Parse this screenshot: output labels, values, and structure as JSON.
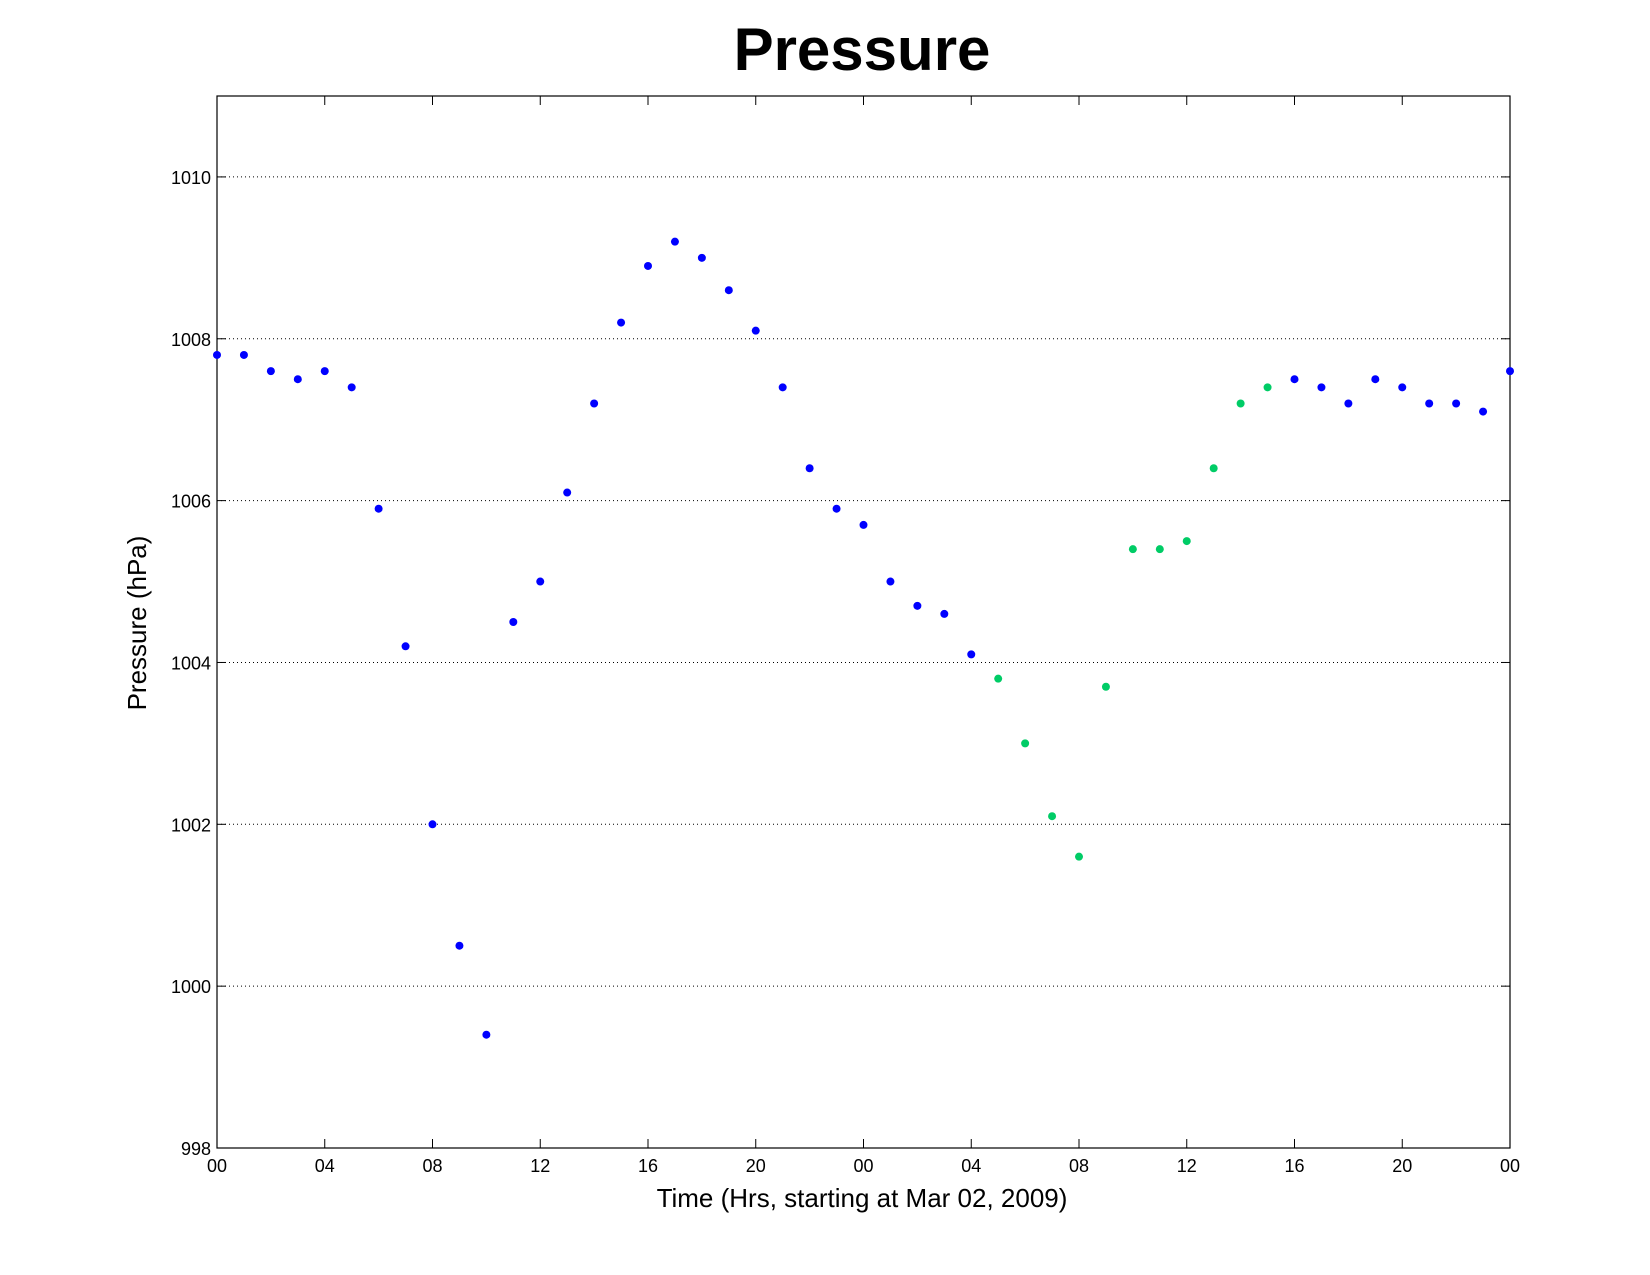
{
  "chart_data": {
    "type": "scatter",
    "title": "Pressure",
    "xlabel": "Time (Hrs, starting at Mar 02, 2009)",
    "ylabel": "Pressure (hPa)",
    "xlim": [
      0,
      48
    ],
    "ylim": [
      998,
      1011
    ],
    "x_ticks": [
      {
        "value": 0,
        "label": "00"
      },
      {
        "value": 4,
        "label": "04"
      },
      {
        "value": 8,
        "label": "08"
      },
      {
        "value": 12,
        "label": "12"
      },
      {
        "value": 16,
        "label": "16"
      },
      {
        "value": 20,
        "label": "20"
      },
      {
        "value": 24,
        "label": "00"
      },
      {
        "value": 28,
        "label": "04"
      },
      {
        "value": 32,
        "label": "08"
      },
      {
        "value": 36,
        "label": "12"
      },
      {
        "value": 40,
        "label": "16"
      },
      {
        "value": 44,
        "label": "20"
      },
      {
        "value": 48,
        "label": "00"
      }
    ],
    "y_ticks": [
      {
        "value": 998,
        "label": "998"
      },
      {
        "value": 1000,
        "label": "1000"
      },
      {
        "value": 1002,
        "label": "1002"
      },
      {
        "value": 1004,
        "label": "1004"
      },
      {
        "value": 1006,
        "label": "1006"
      },
      {
        "value": 1008,
        "label": "1008"
      },
      {
        "value": 1010,
        "label": "1010"
      }
    ],
    "grid": "horizontal-dotted",
    "series": [
      {
        "color": "#0000ff",
        "points": [
          [
            0,
            1007.8
          ],
          [
            1,
            1007.8
          ],
          [
            2,
            1007.6
          ],
          [
            3,
            1007.5
          ],
          [
            4,
            1007.6
          ],
          [
            5,
            1007.4
          ],
          [
            6,
            1005.9
          ],
          [
            7,
            1004.2
          ],
          [
            8,
            1002.0
          ],
          [
            9,
            1000.5
          ],
          [
            10,
            999.4
          ],
          [
            11,
            1004.5
          ],
          [
            12,
            1005.0
          ],
          [
            13,
            1006.1
          ],
          [
            14,
            1007.2
          ],
          [
            15,
            1008.2
          ],
          [
            16,
            1008.9
          ],
          [
            17,
            1009.2
          ],
          [
            18,
            1009.0
          ],
          [
            19,
            1008.6
          ],
          [
            20,
            1008.1
          ],
          [
            21,
            1007.4
          ],
          [
            22,
            1006.4
          ],
          [
            23,
            1005.9
          ],
          [
            24,
            1005.7
          ],
          [
            25,
            1005.0
          ],
          [
            26,
            1004.7
          ],
          [
            27,
            1004.6
          ],
          [
            28,
            1004.1
          ],
          [
            40,
            1007.5
          ],
          [
            41,
            1007.4
          ],
          [
            42,
            1007.2
          ],
          [
            43,
            1007.5
          ],
          [
            44,
            1007.4
          ],
          [
            45,
            1007.2
          ],
          [
            46,
            1007.2
          ],
          [
            47,
            1007.1
          ],
          [
            48,
            1007.6
          ]
        ]
      },
      {
        "color": "#00cc66",
        "points": [
          [
            29,
            1003.8
          ],
          [
            30,
            1003.0
          ],
          [
            31,
            1002.1
          ],
          [
            32,
            1001.6
          ],
          [
            33,
            1003.7
          ],
          [
            34,
            1005.4
          ],
          [
            35,
            1005.4
          ],
          [
            36,
            1005.5
          ],
          [
            37,
            1006.4
          ],
          [
            38,
            1007.2
          ],
          [
            39,
            1007.4
          ]
        ]
      }
    ]
  }
}
